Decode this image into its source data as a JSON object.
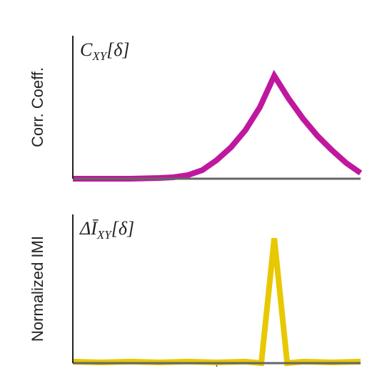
{
  "chart_data": [
    {
      "type": "line",
      "ylabel": "Corr. Coeff.",
      "annotation": {
        "main": "C",
        "sub": "XY",
        "suffix": "[δ]"
      },
      "xlim": [
        0,
        1
      ],
      "ylim": [
        0,
        1
      ],
      "xticks": [],
      "series": [
        {
          "color": "#c0179f",
          "x": [
            0,
            0.1,
            0.2,
            0.3,
            0.35,
            0.4,
            0.45,
            0.5,
            0.55,
            0.6,
            0.65,
            0.7,
            0.75,
            0.8,
            0.85,
            0.9,
            0.95,
            1.0
          ],
          "values": [
            0,
            0,
            0,
            0.005,
            0.01,
            0.025,
            0.06,
            0.13,
            0.22,
            0.34,
            0.5,
            0.72,
            0.56,
            0.42,
            0.3,
            0.2,
            0.11,
            0.04
          ]
        }
      ]
    },
    {
      "type": "line",
      "ylabel": "Normalized IMI",
      "annotation": {
        "main": "ΔĪ",
        "sub": "XY",
        "suffix": "[δ]"
      },
      "xlim": [
        0,
        1
      ],
      "ylim": [
        0,
        1
      ],
      "xticks": [
        0.5
      ],
      "series": [
        {
          "color": "#e8c800",
          "x": [
            0,
            0.1,
            0.2,
            0.3,
            0.4,
            0.5,
            0.6,
            0.655,
            0.7,
            0.745,
            0.8,
            0.9,
            1.0
          ],
          "values": [
            0.01,
            0.005,
            0.01,
            0.005,
            0.01,
            0.005,
            0.01,
            0,
            0.84,
            0,
            0.01,
            0.005,
            0.01
          ]
        }
      ]
    }
  ]
}
